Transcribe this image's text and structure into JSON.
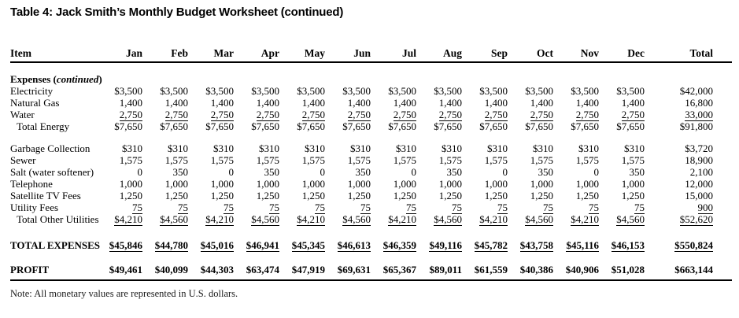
{
  "title": "Table 4: Jack Smith’s Monthly Budget Worksheet (continued)",
  "note": "Note: All monetary values are represented in U.S. dollars.",
  "table": {
    "columns": [
      "Item",
      "Jan",
      "Feb",
      "Mar",
      "Apr",
      "May",
      "Jun",
      "Jul",
      "Aug",
      "Sep",
      "Oct",
      "Nov",
      "Dec",
      "Total"
    ],
    "rows": [
      {
        "type": "spacer",
        "height": 14
      },
      {
        "type": "section",
        "before": "Expenses (",
        "italic": "continued",
        "after": ")"
      },
      {
        "type": "data",
        "label": "Electricity",
        "cells": [
          "$3,500",
          "$3,500",
          "$3,500",
          "$3,500",
          "$3,500",
          "$3,500",
          "$3,500",
          "$3,500",
          "$3,500",
          "$3,500",
          "$3,500",
          "$3,500",
          "$42,000"
        ]
      },
      {
        "type": "data",
        "label": "Natural Gas",
        "cells": [
          "1,400",
          "1,400",
          "1,400",
          "1,400",
          "1,400",
          "1,400",
          "1,400",
          "1,400",
          "1,400",
          "1,400",
          "1,400",
          "1,400",
          "16,800"
        ]
      },
      {
        "type": "data",
        "label": "Water",
        "underline": true,
        "cells": [
          "2,750",
          "2,750",
          "2,750",
          "2,750",
          "2,750",
          "2,750",
          "2,750",
          "2,750",
          "2,750",
          "2,750",
          "2,750",
          "2,750",
          "33,000"
        ]
      },
      {
        "type": "data",
        "label": "Total Energy",
        "indent": true,
        "cells": [
          "$7,650",
          "$7,650",
          "$7,650",
          "$7,650",
          "$7,650",
          "$7,650",
          "$7,650",
          "$7,650",
          "$7,650",
          "$7,650",
          "$7,650",
          "$7,650",
          "$91,800"
        ]
      },
      {
        "type": "spacer",
        "height": 13
      },
      {
        "type": "data",
        "label": "Garbage Collection",
        "cells": [
          "$310",
          "$310",
          "$310",
          "$310",
          "$310",
          "$310",
          "$310",
          "$310",
          "$310",
          "$310",
          "$310",
          "$310",
          "$3,720"
        ]
      },
      {
        "type": "data",
        "label": "Sewer",
        "cells": [
          "1,575",
          "1,575",
          "1,575",
          "1,575",
          "1,575",
          "1,575",
          "1,575",
          "1,575",
          "1,575",
          "1,575",
          "1,575",
          "1,575",
          "18,900"
        ]
      },
      {
        "type": "data",
        "label": "Salt (water softener)",
        "cells": [
          "0",
          "350",
          "0",
          "350",
          "0",
          "350",
          "0",
          "350",
          "0",
          "350",
          "0",
          "350",
          "2,100"
        ]
      },
      {
        "type": "data",
        "label": "Telephone",
        "cells": [
          "1,000",
          "1,000",
          "1,000",
          "1,000",
          "1,000",
          "1,000",
          "1,000",
          "1,000",
          "1,000",
          "1,000",
          "1,000",
          "1,000",
          "12,000"
        ]
      },
      {
        "type": "data",
        "label": "Satellite TV Fees",
        "cells": [
          "1,250",
          "1,250",
          "1,250",
          "1,250",
          "1,250",
          "1,250",
          "1,250",
          "1,250",
          "1,250",
          "1,250",
          "1,250",
          "1,250",
          "15,000"
        ]
      },
      {
        "type": "data",
        "label": "Utility Fees",
        "underline": true,
        "cells": [
          "75",
          "75",
          "75",
          "75",
          "75",
          "75",
          "75",
          "75",
          "75",
          "75",
          "75",
          "75",
          "900"
        ]
      },
      {
        "type": "data",
        "label": "Total Other Utilities",
        "indent": true,
        "underline": true,
        "cells": [
          "$4,210",
          "$4,560",
          "$4,210",
          "$4,560",
          "$4,210",
          "$4,560",
          "$4,210",
          "$4,560",
          "$4,210",
          "$4,560",
          "$4,210",
          "$4,560",
          "$52,620"
        ]
      },
      {
        "type": "spacer",
        "height": 18
      },
      {
        "type": "data",
        "label": "TOTAL EXPENSES",
        "bold": true,
        "underline": true,
        "cells": [
          "$45,846",
          "$44,780",
          "$45,016",
          "$46,941",
          "$45,345",
          "$46,613",
          "$46,359",
          "$49,116",
          "$45,782",
          "$43,758",
          "$45,116",
          "$46,153",
          "$550,824"
        ]
      },
      {
        "type": "spacer",
        "height": 16
      },
      {
        "type": "data",
        "label": "PROFIT",
        "bold": true,
        "cells": [
          "$49,461",
          "$40,099",
          "$44,303",
          "$63,474",
          "$47,919",
          "$69,631",
          "$65,367",
          "$89,011",
          "$61,559",
          "$40,386",
          "$40,906",
          "$51,028",
          "$663,144"
        ]
      }
    ]
  }
}
